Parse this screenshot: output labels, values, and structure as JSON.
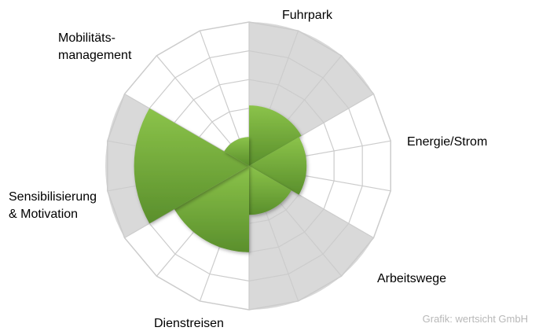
{
  "chart_data": {
    "type": "polar-area",
    "categories": [
      "Fuhrpark",
      "Energie/Strom",
      "Arbeitswege",
      "Dienstreisen",
      "Sensibilisierung & Motivation",
      "Mobilitätsmanagement"
    ],
    "label_lines": [
      [
        "Fuhrpark"
      ],
      [
        "Energie/Strom"
      ],
      [
        "Arbeitswege"
      ],
      [
        "Dienstreisen"
      ],
      [
        "Sensibilisierung",
        "& Motivation"
      ],
      [
        "Mobilitäts-",
        "management"
      ]
    ],
    "values": [
      2.1,
      2.0,
      1.7,
      3.0,
      4.0,
      1.0
    ],
    "rlim": [
      0,
      5
    ],
    "grid_rings": 5,
    "colors": {
      "series_light": "#8bc34a",
      "series_dark": "#5a8f2c",
      "background_even": "#d9d9d9",
      "background_odd": "#ffffff",
      "grid": "#cccccc"
    }
  },
  "credit": "Grafik: wertsicht GmbH"
}
